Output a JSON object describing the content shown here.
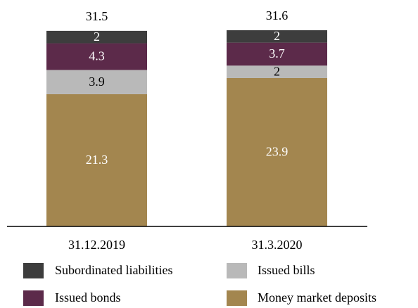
{
  "chart_data": {
    "type": "stacked_bar",
    "categories": [
      "31.12.2019",
      "31.3.2020"
    ],
    "series": [
      {
        "name": "Money market deposits",
        "color": "#a3864f",
        "values": [
          21.3,
          23.9
        ]
      },
      {
        "name": "Issued bills",
        "color": "#b9b9b9",
        "values": [
          3.9,
          2.0
        ]
      },
      {
        "name": "Issued bonds",
        "color": "#5c2a4a",
        "values": [
          4.3,
          3.7
        ]
      },
      {
        "name": "Subordinated liabilities",
        "color": "#3d3d3d",
        "values": [
          2.0,
          2.0
        ]
      }
    ],
    "totals": [
      31.5,
      31.6
    ]
  }
}
